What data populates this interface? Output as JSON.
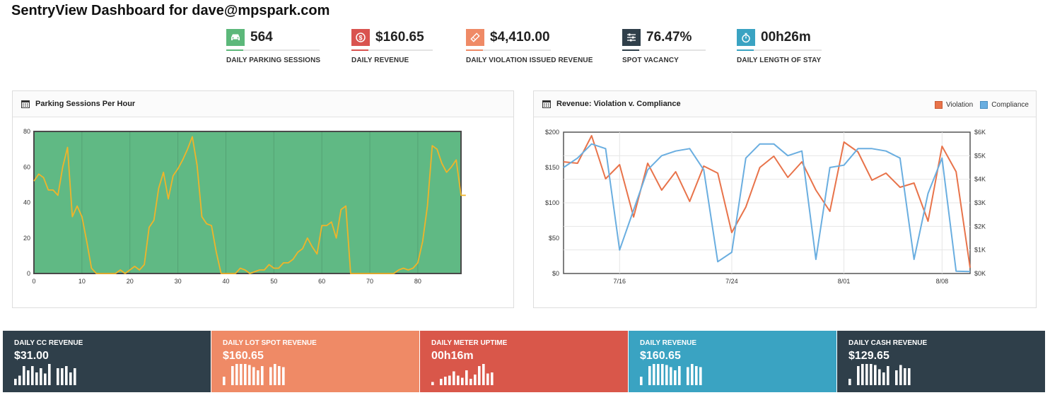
{
  "header": {
    "title": "SentryView Dashboard for dave@mpspark.com"
  },
  "kpis": [
    {
      "value": "564",
      "label": "DAILY PARKING SESSIONS",
      "color": "#5cb87a",
      "icon": "car-icon"
    },
    {
      "value": "$160.65",
      "label": "DAILY REVENUE",
      "color": "#d9534f",
      "icon": "dollar-icon"
    },
    {
      "value": "$4,410.00",
      "label": "DAILY VIOLATION ISSUED REVENUE",
      "color": "#ef8a66",
      "icon": "ticket-icon"
    },
    {
      "value": "76.47%",
      "label": "SPOT VACANCY",
      "color": "#2f3f4a",
      "icon": "sliders-icon"
    },
    {
      "value": "00h26m",
      "label": "DAILY LENGTH OF STAY",
      "color": "#3aa3c2",
      "icon": "stopwatch-icon"
    }
  ],
  "panels": {
    "sessions": {
      "title": "Parking Sessions Per Hour"
    },
    "revenue": {
      "title": "Revenue: Violation v. Compliance",
      "legend": [
        "Violation",
        "Compliance"
      ]
    }
  },
  "chart_data": [
    {
      "type": "line",
      "title": "Parking Sessions Per Hour",
      "xlim": [
        0,
        89
      ],
      "ylim": [
        0,
        80
      ],
      "xticks": [
        0,
        10,
        20,
        30,
        40,
        50,
        60,
        70,
        80
      ],
      "yticks": [
        0,
        20,
        40,
        60,
        80
      ],
      "background": "#60b984",
      "line_color": "#f0b429",
      "series": [
        {
          "values": [
            52,
            56,
            54,
            47,
            47,
            44,
            60,
            71,
            32,
            38,
            32,
            18,
            3,
            0,
            0,
            0,
            0,
            0,
            2,
            0,
            2,
            4,
            2,
            5,
            26,
            30,
            48,
            57,
            42,
            55,
            59,
            64,
            70,
            77,
            61,
            32,
            28,
            27,
            12,
            0,
            0,
            0,
            0,
            3,
            2,
            0,
            1,
            2,
            2,
            5,
            3,
            3,
            6,
            6,
            8,
            12,
            14,
            20,
            15,
            11,
            27,
            27,
            29,
            20,
            36,
            38,
            0,
            0,
            0,
            0,
            0,
            0,
            0,
            0,
            0,
            0,
            2,
            3,
            2,
            3,
            6,
            18,
            38,
            72,
            70,
            62,
            57,
            60,
            64,
            44,
            44
          ]
        }
      ]
    },
    {
      "type": "line",
      "title": "Revenue: Violation v. Compliance",
      "x": [
        "7/12",
        "7/13",
        "7/14",
        "7/15",
        "7/16",
        "7/17",
        "7/18",
        "7/19",
        "7/20",
        "7/21",
        "7/22",
        "7/23",
        "7/24",
        "7/25",
        "7/26",
        "7/27",
        "7/28",
        "7/29",
        "7/30",
        "7/31",
        "8/01",
        "8/02",
        "8/03",
        "8/04",
        "8/05",
        "8/06",
        "8/07",
        "8/08",
        "8/09",
        "8/10"
      ],
      "xticks": [
        "7/16",
        "7/24",
        "8/01",
        "8/08"
      ],
      "yleft": {
        "lim": [
          0,
          200
        ],
        "ticks": [
          "$0",
          "$50",
          "$100",
          "$150",
          "$200"
        ]
      },
      "yright": {
        "lim": [
          0,
          6000
        ],
        "ticks": [
          "$0K",
          "$1K",
          "$2K",
          "$3K",
          "$4K",
          "$5K",
          "$6K"
        ]
      },
      "series": [
        {
          "name": "Violation",
          "color": "#e8734a",
          "axis": "left",
          "values": [
            158,
            156,
            195,
            134,
            154,
            80,
            156,
            118,
            144,
            102,
            152,
            142,
            58,
            94,
            150,
            166,
            136,
            158,
            118,
            88,
            186,
            172,
            132,
            142,
            122,
            128,
            74,
            180,
            144,
            8
          ]
        },
        {
          "name": "Compliance",
          "color": "#6aaee0",
          "axis": "right",
          "values": [
            4500,
            4900,
            5500,
            5300,
            1000,
            2700,
            4400,
            5000,
            5200,
            5300,
            4400,
            500,
            900,
            4900,
            5500,
            5500,
            5000,
            5200,
            600,
            4500,
            4600,
            5300,
            5300,
            5200,
            4900,
            600,
            3400,
            4900,
            100,
            80
          ]
        }
      ]
    }
  ],
  "tiles": [
    {
      "label": "DAILY CC REVENUE",
      "value": "$31.00",
      "color": "#2f3f4a",
      "bars": [
        0.3,
        0.45,
        0.9,
        0.7,
        0.9,
        0.6,
        0.8,
        0.55,
        1.0,
        0.0,
        0.8,
        0.8,
        0.9,
        0.6,
        0.8
      ]
    },
    {
      "label": "DAILY LOT SPOT REVENUE",
      "value": "$160.65",
      "color": "#ef8a66",
      "bars": [
        0.4,
        0.0,
        0.9,
        1.0,
        1.0,
        1.0,
        0.95,
        0.85,
        0.7,
        0.9,
        0.0,
        0.85,
        1.0,
        0.9,
        0.85
      ]
    },
    {
      "label": "DAILY METER UPTIME",
      "value": "00h16m",
      "color": "#d9574a",
      "bars": [
        0.15,
        0.0,
        0.3,
        0.4,
        0.45,
        0.65,
        0.45,
        0.35,
        0.7,
        0.3,
        0.5,
        0.9,
        1.0,
        0.55,
        0.6
      ]
    },
    {
      "label": "DAILY REVENUE",
      "value": "$160.65",
      "color": "#3aa3c2",
      "bars": [
        0.4,
        0.0,
        0.9,
        1.0,
        1.0,
        1.0,
        0.95,
        0.85,
        0.7,
        0.9,
        0.0,
        0.85,
        1.0,
        0.9,
        0.85
      ]
    },
    {
      "label": "DAILY CASH REVENUE",
      "value": "$129.65",
      "color": "#2f3f4a",
      "bars": [
        0.3,
        0.0,
        0.9,
        1.0,
        1.0,
        1.0,
        0.95,
        0.75,
        0.6,
        0.9,
        0.0,
        0.7,
        0.95,
        0.8,
        0.8
      ]
    }
  ]
}
